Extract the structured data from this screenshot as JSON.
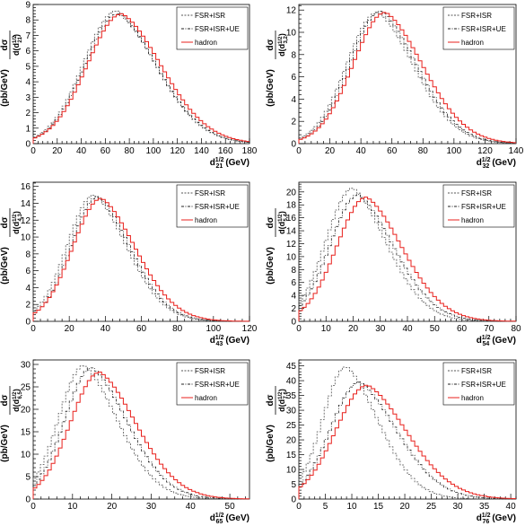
{
  "legend_labels": [
    "FSR+ISR",
    "FSR+ISR+UE",
    "hadron"
  ],
  "ylabel": {
    "numerator": "dσ",
    "unit": "(pb/GeV)"
  },
  "colors": {
    "fsr_isr": "#555555",
    "fsr_isr_ue": "#222222",
    "hadron": "#e8201c",
    "axis": "#000000"
  },
  "chart_data": [
    {
      "type": "line",
      "step": true,
      "xname": "d",
      "xsub": "21",
      "sub": "21",
      "xlabel_unit": "(GeV)",
      "xlim": [
        0,
        180
      ],
      "ylim": [
        0,
        9
      ],
      "xticks": [
        0,
        20,
        40,
        60,
        80,
        100,
        120,
        140,
        160,
        180
      ],
      "yticks": [
        0,
        1,
        2,
        3,
        4,
        5,
        6,
        7,
        8,
        9
      ],
      "peaks": [
        8.6,
        8.4,
        8.4
      ],
      "peak_x": [
        70,
        71,
        74
      ],
      "width": [
        28,
        28,
        29
      ],
      "tail": [
        1.35,
        1.35,
        1.33
      ]
    },
    {
      "type": "line",
      "step": true,
      "xname": "d",
      "xsub": "32",
      "sub": "3,2",
      "xlabel_unit": "(GeV)",
      "xlim": [
        0,
        140
      ],
      "ylim": [
        0,
        12.5
      ],
      "xticks": [
        0,
        20,
        40,
        60,
        80,
        100,
        120,
        140
      ],
      "yticks": [
        0,
        2,
        4,
        6,
        8,
        10,
        12
      ],
      "peaks": [
        11.8,
        11.9,
        11.8
      ],
      "peak_x": [
        51,
        53,
        56
      ],
      "width": [
        20,
        20,
        21
      ],
      "tail": [
        1.35,
        1.35,
        1.33
      ]
    },
    {
      "type": "line",
      "step": true,
      "xname": "d",
      "xsub": "43",
      "sub": "4,3",
      "xlabel_unit": "(GeV)",
      "xlim": [
        0,
        120
      ],
      "ylim": [
        0,
        16.5
      ],
      "xticks": [
        0,
        20,
        40,
        60,
        80,
        100,
        120
      ],
      "yticks": [
        0,
        2,
        4,
        6,
        8,
        10,
        12,
        14,
        16
      ],
      "peaks": [
        15.0,
        14.8,
        14.6
      ],
      "peak_x": [
        34,
        36,
        38
      ],
      "width": [
        15,
        15,
        16
      ],
      "tail": [
        1.4,
        1.4,
        1.38
      ]
    },
    {
      "type": "line",
      "step": true,
      "xname": "d",
      "xsub": "54",
      "sub": "5,4",
      "xlabel_unit": "(GeV)",
      "xlim": [
        0,
        80
      ],
      "ylim": [
        0,
        21.5
      ],
      "xticks": [
        0,
        10,
        20,
        30,
        40,
        50,
        60,
        70,
        80
      ],
      "yticks": [
        0,
        2,
        4,
        6,
        8,
        10,
        12,
        14,
        16,
        18,
        20
      ],
      "peaks": [
        20.6,
        19.6,
        19.2
      ],
      "peak_x": [
        20,
        22,
        25
      ],
      "width": [
        10,
        10.5,
        11
      ],
      "tail": [
        1.45,
        1.45,
        1.4
      ]
    },
    {
      "type": "line",
      "step": true,
      "xname": "d",
      "xsub": "65",
      "sub": "6,5",
      "xlabel_unit": "(GeV)",
      "xlim": [
        0,
        55
      ],
      "ylim": [
        0,
        31
      ],
      "xticks": [
        0,
        10,
        20,
        30,
        40,
        50
      ],
      "yticks": [
        0,
        5,
        10,
        15,
        20,
        25,
        30
      ],
      "peaks": [
        29.8,
        29.3,
        28.3
      ],
      "peak_x": [
        13,
        15,
        17
      ],
      "width": [
        6.5,
        7,
        7.5
      ],
      "tail": [
        1.55,
        1.5,
        1.45
      ]
    },
    {
      "type": "line",
      "step": true,
      "xname": "d",
      "xsub": "76",
      "sub": "7,6",
      "xlabel_unit": "(GeV)",
      "xlim": [
        0,
        41
      ],
      "ylim": [
        0,
        47
      ],
      "xticks": [
        0,
        5,
        10,
        15,
        20,
        25,
        30,
        35,
        40
      ],
      "yticks": [
        0,
        5,
        10,
        15,
        20,
        25,
        30,
        35,
        40,
        45
      ],
      "peaks": [
        44.8,
        39.5,
        38.5
      ],
      "peak_x": [
        9,
        11.5,
        13
      ],
      "width": [
        4.5,
        5.5,
        6
      ],
      "tail": [
        1.6,
        1.5,
        1.45
      ]
    }
  ]
}
